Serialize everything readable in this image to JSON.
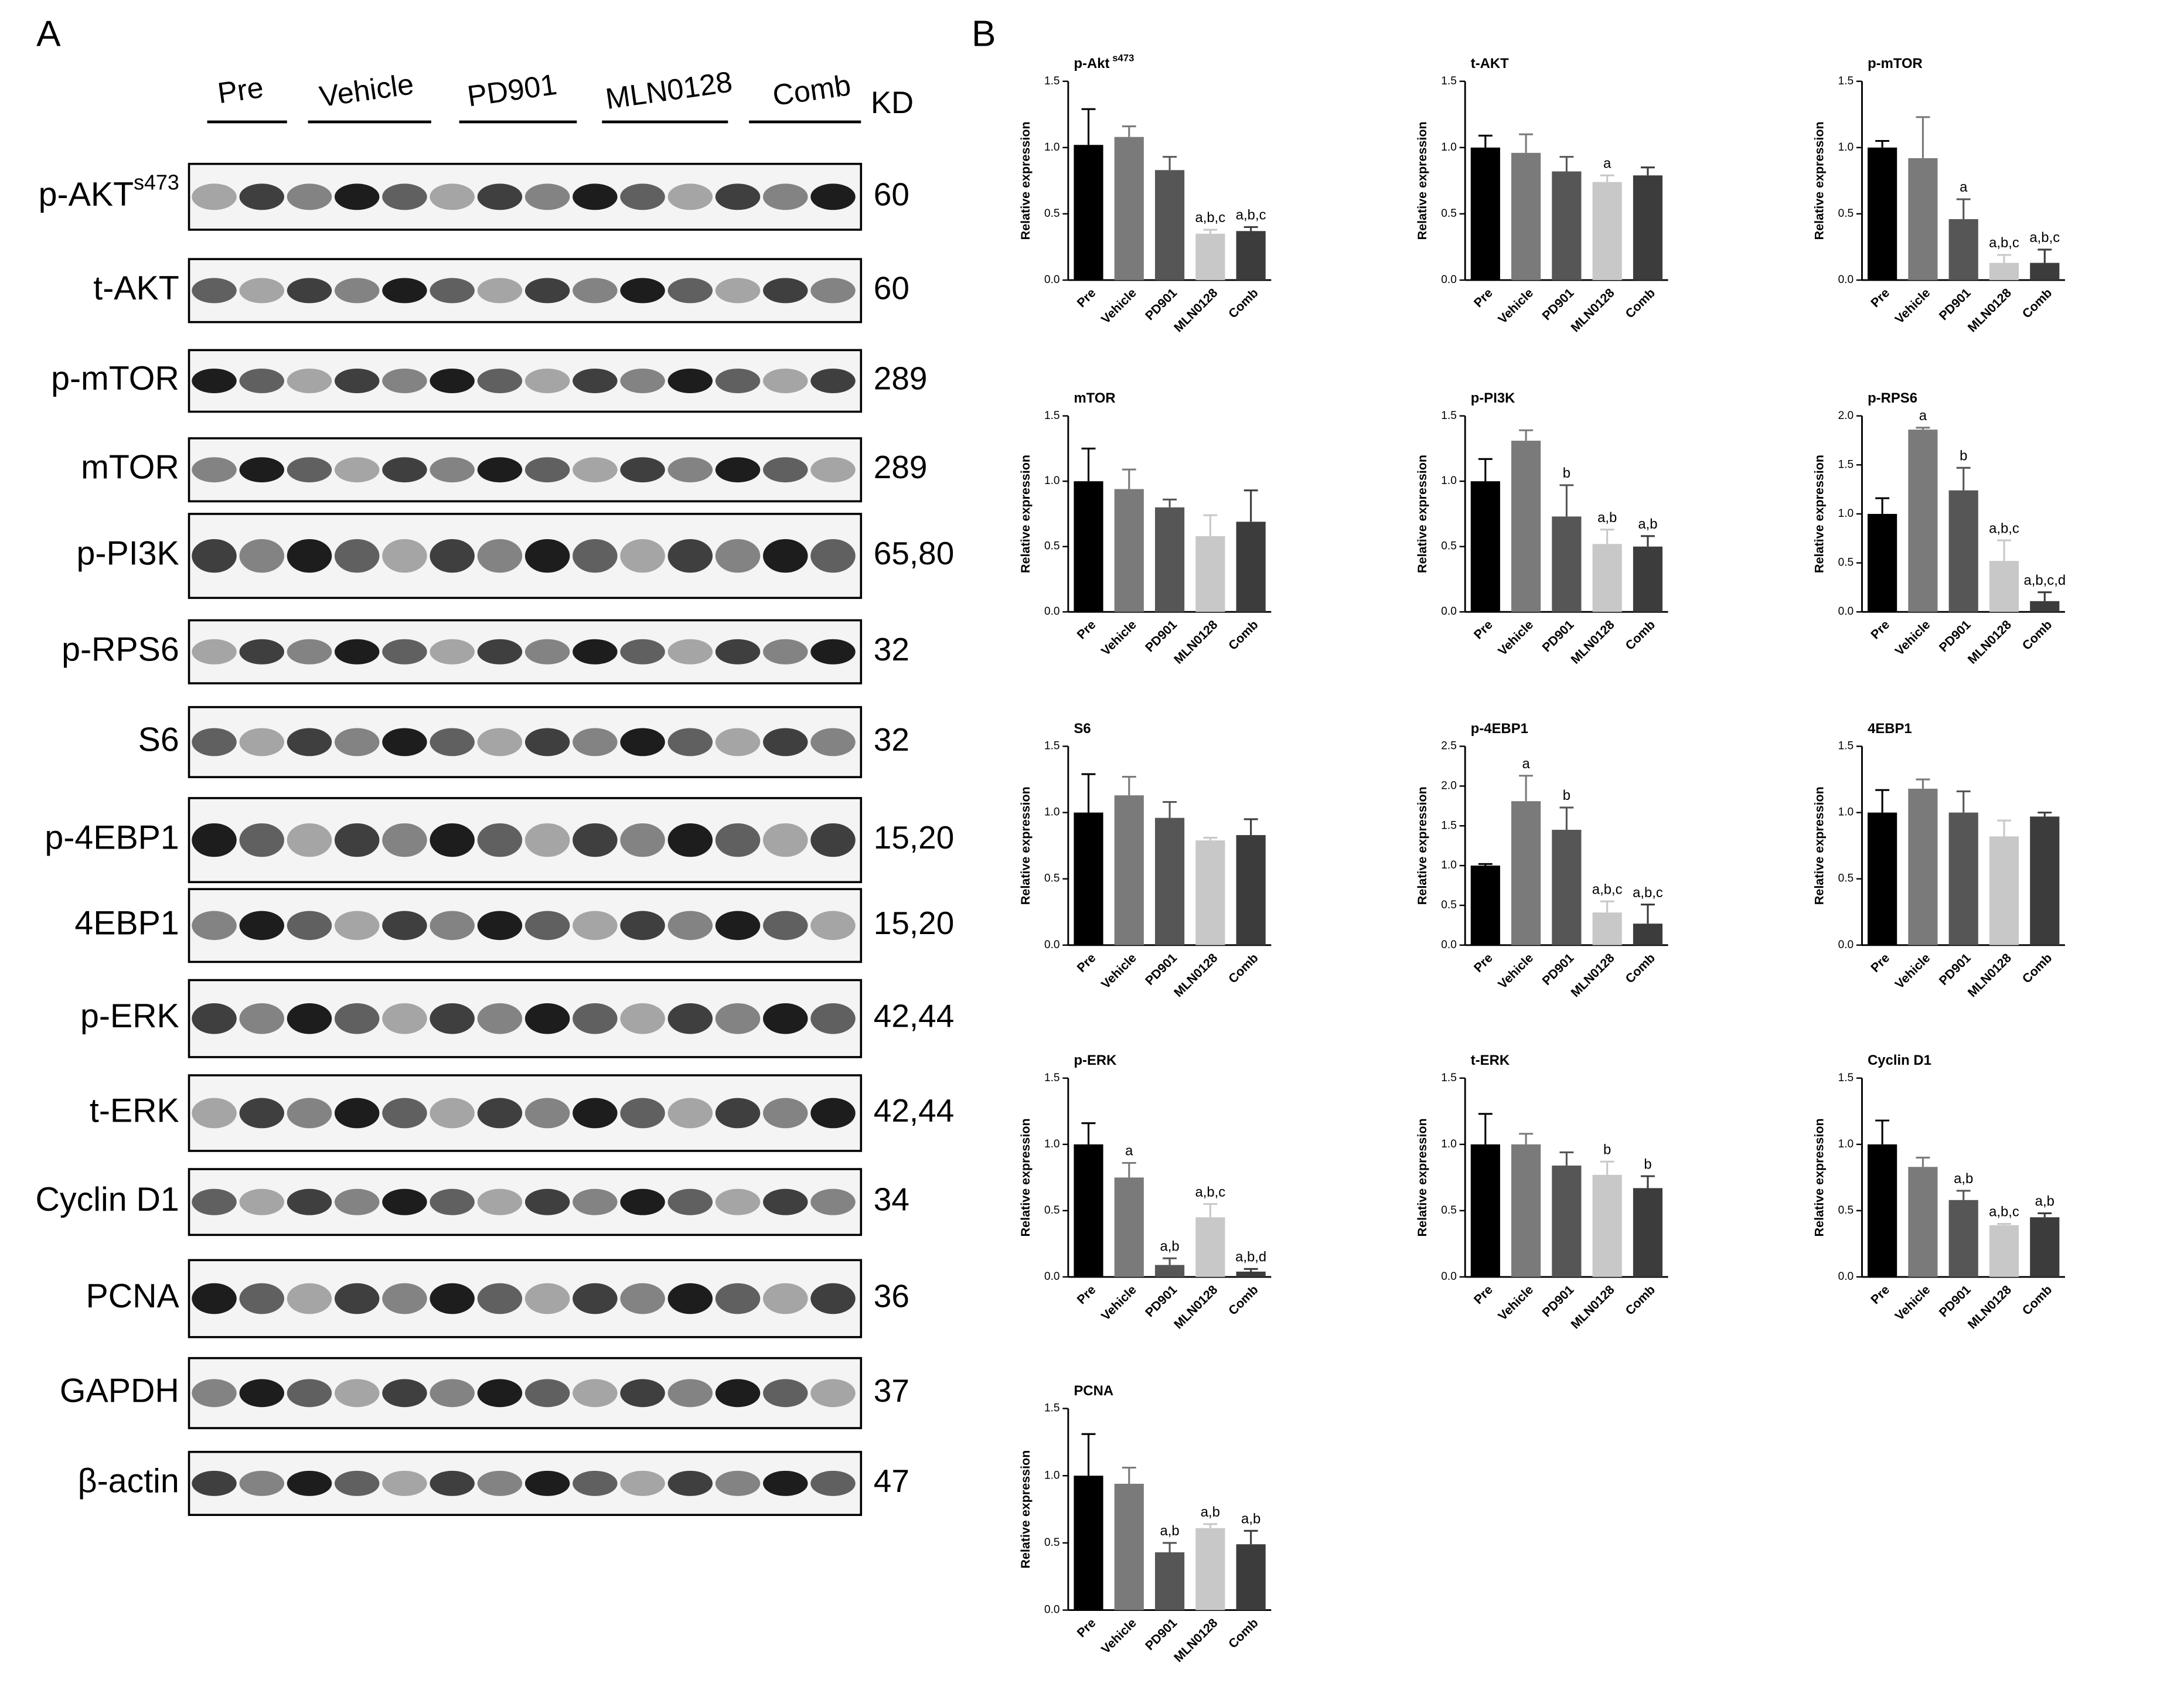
{
  "panel_labels": [
    "A",
    "B"
  ],
  "blots": {
    "column_headers": [
      "Pre",
      "Vehicle",
      "PD901",
      "MLN0128",
      "Comb"
    ],
    "unit": "KD",
    "rows": [
      {
        "label": "p-AKT",
        "sup": "s473",
        "kd": "60"
      },
      {
        "label": "t-AKT",
        "kd": "60"
      },
      {
        "label": "p-mTOR",
        "kd": "289"
      },
      {
        "label": "mTOR",
        "kd": "289"
      },
      {
        "label": "p-PI3K",
        "kd": "65,80"
      },
      {
        "label": "p-RPS6",
        "kd": "32"
      },
      {
        "label": "S6",
        "kd": "32"
      },
      {
        "label": "p-4EBP1",
        "kd": "15,20"
      },
      {
        "label": "4EBP1",
        "kd": "15,20"
      },
      {
        "label": "p-ERK",
        "kd": "42,44"
      },
      {
        "label": "t-ERK",
        "kd": "42,44"
      },
      {
        "label": "Cyclin D1",
        "kd": "34"
      },
      {
        "label": "PCNA",
        "kd": "36"
      },
      {
        "label": "GAPDH",
        "kd": "37"
      },
      {
        "label": "β-actin",
        "kd": "47"
      }
    ]
  },
  "chart_data": [
    {
      "type": "bar",
      "title": "p-Akt",
      "title_sup": "s473",
      "y_label": "Relative expression",
      "categories": [
        "Pre",
        "Vehicle",
        "PD901",
        "MLN0128",
        "Comb"
      ],
      "values": [
        1.02,
        1.08,
        0.83,
        0.35,
        0.37
      ],
      "errors": [
        0.27,
        0.08,
        0.1,
        0.03,
        0.03
      ],
      "annotations": [
        null,
        null,
        null,
        "a,b,c",
        "a,b,c"
      ],
      "colors": [
        "#000000",
        "#7a7a7a",
        "#565656",
        "#c8c8c8",
        "#3c3c3c"
      ],
      "ylim": [
        0,
        1.5
      ],
      "yticks": [
        {
          "value": 0,
          "label": "0.0"
        },
        {
          "value": 0.5,
          "label": "0.5"
        },
        {
          "value": 1,
          "label": "1.0"
        },
        {
          "value": 1.5,
          "label": "1.5"
        }
      ]
    },
    {
      "type": "bar",
      "title": "t-AKT",
      "y_label": "Relative expression",
      "categories": [
        "Pre",
        "Vehicle",
        "PD901",
        "MLN0128",
        "Comb"
      ],
      "values": [
        1.0,
        0.96,
        0.82,
        0.74,
        0.79
      ],
      "errors": [
        0.09,
        0.14,
        0.11,
        0.05,
        0.06
      ],
      "annotations": [
        null,
        null,
        null,
        "a",
        null
      ],
      "colors": [
        "#000000",
        "#7a7a7a",
        "#565656",
        "#c8c8c8",
        "#3c3c3c"
      ],
      "ylim": [
        0,
        1.5
      ],
      "yticks": [
        {
          "value": 0,
          "label": "0.0"
        },
        {
          "value": 0.5,
          "label": "0.5"
        },
        {
          "value": 1,
          "label": "1.0"
        },
        {
          "value": 1.5,
          "label": "1.5"
        }
      ]
    },
    {
      "type": "bar",
      "title": "p-mTOR",
      "y_label": "Relative expression",
      "categories": [
        "Pre",
        "Vehicle",
        "PD901",
        "MLN0128",
        "Comb"
      ],
      "values": [
        1.0,
        0.92,
        0.46,
        0.13,
        0.13
      ],
      "errors": [
        0.05,
        0.31,
        0.15,
        0.06,
        0.1
      ],
      "annotations": [
        null,
        null,
        "a",
        "a,b,c",
        "a,b,c"
      ],
      "colors": [
        "#000000",
        "#7a7a7a",
        "#565656",
        "#c8c8c8",
        "#3c3c3c"
      ],
      "ylim": [
        0,
        1.5
      ],
      "yticks": [
        {
          "value": 0,
          "label": "0.0"
        },
        {
          "value": 0.5,
          "label": "0.5"
        },
        {
          "value": 1,
          "label": "1.0"
        },
        {
          "value": 1.5,
          "label": "1.5"
        }
      ]
    },
    {
      "type": "bar",
      "title": "mTOR",
      "y_label": "Relative expression",
      "categories": [
        "Pre",
        "Vehicle",
        "PD901",
        "MLN0128",
        "Comb"
      ],
      "values": [
        1.0,
        0.94,
        0.8,
        0.58,
        0.69
      ],
      "errors": [
        0.25,
        0.15,
        0.06,
        0.16,
        0.24
      ],
      "annotations": [
        null,
        null,
        null,
        null,
        null
      ],
      "colors": [
        "#000000",
        "#7a7a7a",
        "#565656",
        "#c8c8c8",
        "#3c3c3c"
      ],
      "ylim": [
        0,
        1.5
      ],
      "yticks": [
        {
          "value": 0,
          "label": "0.0"
        },
        {
          "value": 0.5,
          "label": "0.5"
        },
        {
          "value": 1,
          "label": "1.0"
        },
        {
          "value": 1.5,
          "label": "1.5"
        }
      ]
    },
    {
      "type": "bar",
      "title": "p-PI3K",
      "y_label": "Relative expression",
      "categories": [
        "Pre",
        "Vehicle",
        "PD901",
        "MLN0128",
        "Comb"
      ],
      "values": [
        1.0,
        1.31,
        0.73,
        0.52,
        0.5
      ],
      "errors": [
        0.17,
        0.08,
        0.24,
        0.11,
        0.08
      ],
      "annotations": [
        null,
        null,
        "b",
        "a,b",
        "a,b"
      ],
      "colors": [
        "#000000",
        "#7a7a7a",
        "#565656",
        "#c8c8c8",
        "#3c3c3c"
      ],
      "ylim": [
        0,
        1.5
      ],
      "yticks": [
        {
          "value": 0,
          "label": "0.0"
        },
        {
          "value": 0.5,
          "label": "0.5"
        },
        {
          "value": 1,
          "label": "1.0"
        },
        {
          "value": 1.5,
          "label": "1.5"
        }
      ]
    },
    {
      "type": "bar",
      "title": "p-RPS6",
      "y_label": "Relative expression",
      "categories": [
        "Pre",
        "Vehicle",
        "PD901",
        "MLN0128",
        "Comb"
      ],
      "values": [
        1.0,
        1.86,
        1.24,
        0.52,
        0.11
      ],
      "errors": [
        0.16,
        0.02,
        0.23,
        0.21,
        0.09
      ],
      "annotations": [
        null,
        "a",
        "b",
        "a,b,c",
        "a,b,c,d"
      ],
      "colors": [
        "#000000",
        "#7a7a7a",
        "#565656",
        "#c8c8c8",
        "#3c3c3c"
      ],
      "ylim": [
        0,
        2
      ],
      "yticks": [
        {
          "value": 0,
          "label": "0.0"
        },
        {
          "value": 0.5,
          "label": "0.5"
        },
        {
          "value": 1,
          "label": "1.0"
        },
        {
          "value": 1.5,
          "label": "1.5"
        },
        {
          "value": 2,
          "label": "2.0"
        }
      ]
    },
    {
      "type": "bar",
      "title": "S6",
      "y_label": "Relative expression",
      "categories": [
        "Pre",
        "Vehicle",
        "PD901",
        "MLN0128",
        "Comb"
      ],
      "values": [
        1.0,
        1.13,
        0.96,
        0.79,
        0.83
      ],
      "errors": [
        0.29,
        0.14,
        0.12,
        0.02,
        0.12
      ],
      "annotations": [
        null,
        null,
        null,
        null,
        null
      ],
      "colors": [
        "#000000",
        "#7a7a7a",
        "#565656",
        "#c8c8c8",
        "#3c3c3c"
      ],
      "ylim": [
        0,
        1.5
      ],
      "yticks": [
        {
          "value": 0,
          "label": "0.0"
        },
        {
          "value": 0.5,
          "label": "0.5"
        },
        {
          "value": 1,
          "label": "1.0"
        },
        {
          "value": 1.5,
          "label": "1.5"
        }
      ]
    },
    {
      "type": "bar",
      "title": "p-4EBP1",
      "y_label": "Relative expression",
      "categories": [
        "Pre",
        "Vehicle",
        "PD901",
        "MLN0128",
        "Comb"
      ],
      "values": [
        1.0,
        1.81,
        1.45,
        0.41,
        0.27
      ],
      "errors": [
        0.02,
        0.32,
        0.28,
        0.14,
        0.24
      ],
      "annotations": [
        null,
        "a",
        "b",
        "a,b,c",
        "a,b,c"
      ],
      "colors": [
        "#000000",
        "#7a7a7a",
        "#565656",
        "#c8c8c8",
        "#3c3c3c"
      ],
      "ylim": [
        0,
        2.5
      ],
      "yticks": [
        {
          "value": 0,
          "label": "0.0"
        },
        {
          "value": 0.5,
          "label": "0.5"
        },
        {
          "value": 1,
          "label": "1.0"
        },
        {
          "value": 1.5,
          "label": "1.5"
        },
        {
          "value": 2,
          "label": "2.0"
        },
        {
          "value": 2.5,
          "label": "2.5"
        }
      ]
    },
    {
      "type": "bar",
      "title": "4EBP1",
      "y_label": "Relative expression",
      "categories": [
        "Pre",
        "Vehicle",
        "PD901",
        "MLN0128",
        "Comb"
      ],
      "values": [
        1.0,
        1.18,
        1.0,
        0.82,
        0.97
      ],
      "errors": [
        0.17,
        0.07,
        0.16,
        0.12,
        0.03
      ],
      "annotations": [
        null,
        null,
        null,
        null,
        null
      ],
      "colors": [
        "#000000",
        "#7a7a7a",
        "#565656",
        "#c8c8c8",
        "#3c3c3c"
      ],
      "ylim": [
        0,
        1.5
      ],
      "yticks": [
        {
          "value": 0,
          "label": "0.0"
        },
        {
          "value": 0.5,
          "label": "0.5"
        },
        {
          "value": 1,
          "label": "1.0"
        },
        {
          "value": 1.5,
          "label": "1.5"
        }
      ]
    },
    {
      "type": "bar",
      "title": "p-ERK",
      "y_label": "Relative expression",
      "categories": [
        "Pre",
        "Vehicle",
        "PD901",
        "MLN0128",
        "Comb"
      ],
      "values": [
        1.0,
        0.75,
        0.09,
        0.45,
        0.04
      ],
      "errors": [
        0.16,
        0.11,
        0.05,
        0.1,
        0.02
      ],
      "annotations": [
        null,
        "a",
        "a,b",
        "a,b,c",
        "a,b,d"
      ],
      "colors": [
        "#000000",
        "#7a7a7a",
        "#565656",
        "#c8c8c8",
        "#3c3c3c"
      ],
      "ylim": [
        0,
        1.5
      ],
      "yticks": [
        {
          "value": 0,
          "label": "0.0"
        },
        {
          "value": 0.5,
          "label": "0.5"
        },
        {
          "value": 1,
          "label": "1.0"
        },
        {
          "value": 1.5,
          "label": "1.5"
        }
      ]
    },
    {
      "type": "bar",
      "title": "t-ERK",
      "y_label": "Relative expression",
      "categories": [
        "Pre",
        "Vehicle",
        "PD901",
        "MLN0128",
        "Comb"
      ],
      "values": [
        1.0,
        1.0,
        0.84,
        0.77,
        0.67
      ],
      "errors": [
        0.23,
        0.08,
        0.1,
        0.1,
        0.09
      ],
      "annotations": [
        null,
        null,
        null,
        "b",
        "b"
      ],
      "colors": [
        "#000000",
        "#7a7a7a",
        "#565656",
        "#c8c8c8",
        "#3c3c3c"
      ],
      "ylim": [
        0,
        1.5
      ],
      "yticks": [
        {
          "value": 0,
          "label": "0.0"
        },
        {
          "value": 0.5,
          "label": "0.5"
        },
        {
          "value": 1,
          "label": "1.0"
        },
        {
          "value": 1.5,
          "label": "1.5"
        }
      ]
    },
    {
      "type": "bar",
      "title": "Cyclin D1",
      "y_label": "Relative expression",
      "categories": [
        "Pre",
        "Vehicle",
        "PD901",
        "MLN0128",
        "Comb"
      ],
      "values": [
        1.0,
        0.83,
        0.58,
        0.39,
        0.45
      ],
      "errors": [
        0.18,
        0.07,
        0.07,
        0.01,
        0.03
      ],
      "annotations": [
        null,
        null,
        "a,b",
        "a,b,c",
        "a,b"
      ],
      "colors": [
        "#000000",
        "#7a7a7a",
        "#565656",
        "#c8c8c8",
        "#3c3c3c"
      ],
      "ylim": [
        0,
        1.5
      ],
      "yticks": [
        {
          "value": 0,
          "label": "0.0"
        },
        {
          "value": 0.5,
          "label": "0.5"
        },
        {
          "value": 1,
          "label": "1.0"
        },
        {
          "value": 1.5,
          "label": "1.5"
        }
      ]
    },
    {
      "type": "bar",
      "title": "PCNA",
      "y_label": "Relative expression",
      "categories": [
        "Pre",
        "Vehicle",
        "PD901",
        "MLN0128",
        "Comb"
      ],
      "values": [
        1.0,
        0.94,
        0.43,
        0.61,
        0.49
      ],
      "errors": [
        0.31,
        0.12,
        0.07,
        0.03,
        0.1
      ],
      "annotations": [
        null,
        null,
        "a,b",
        "a,b",
        "a,b"
      ],
      "colors": [
        "#000000",
        "#7a7a7a",
        "#565656",
        "#c8c8c8",
        "#3c3c3c"
      ],
      "ylim": [
        0,
        1.5
      ],
      "yticks": [
        {
          "value": 0,
          "label": "0.0"
        },
        {
          "value": 0.5,
          "label": "0.5"
        },
        {
          "value": 1,
          "label": "1.0"
        },
        {
          "value": 1.5,
          "label": "1.5"
        }
      ]
    }
  ]
}
